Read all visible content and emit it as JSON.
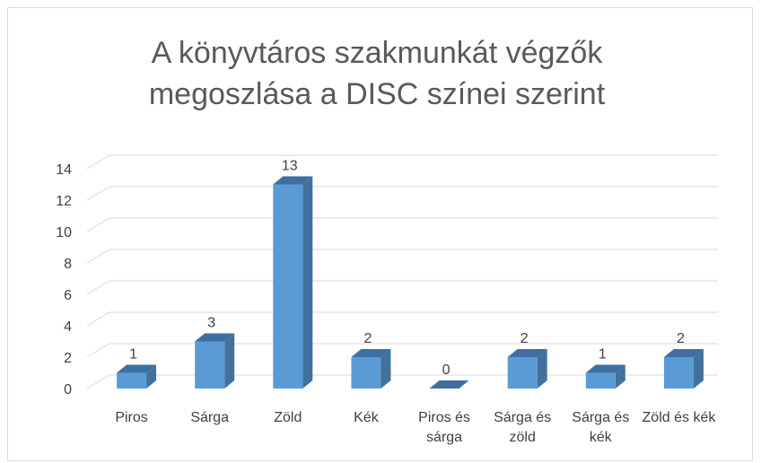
{
  "chart_data": {
    "type": "bar3d",
    "title": "A könyvtáros szakmunkát végzők megoszlása a DISC színei szerint",
    "categories": [
      "Piros",
      "Sárga",
      "Zöld",
      "Kék",
      "Piros és sárga",
      "Sárga és zöld",
      "Sárga és kék",
      "Zöld és kék"
    ],
    "values": [
      1,
      3,
      13,
      2,
      0,
      2,
      1,
      2
    ],
    "color": "#5b9bd5",
    "ylim": [
      0,
      14
    ],
    "yticks": [
      0,
      2,
      4,
      6,
      8,
      10,
      12,
      14
    ],
    "grid": true
  }
}
